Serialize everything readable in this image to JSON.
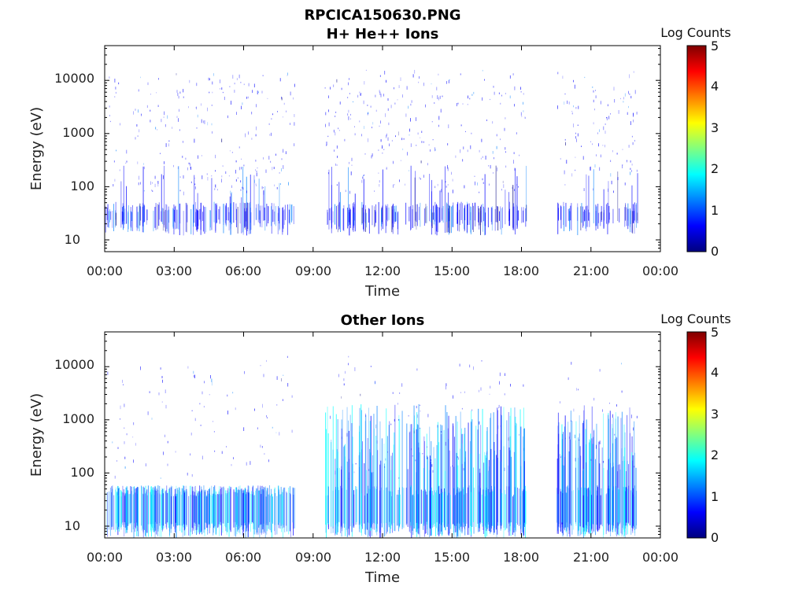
{
  "page_title": "RPCICA150630.PNG",
  "colormap": [
    "#00007f",
    "#0000ff",
    "#0080ff",
    "#00ffff",
    "#80ff80",
    "#ffff00",
    "#ff8000",
    "#ff0000",
    "#7f0000"
  ],
  "chart_data": [
    {
      "type": "heatmap",
      "title": "H+ He++ Ions",
      "xlabel": "Time",
      "ylabel": "Energy (eV)",
      "x_ticks": [
        "00:00",
        "03:00",
        "06:00",
        "09:00",
        "12:00",
        "15:00",
        "18:00",
        "21:00",
        "00:00"
      ],
      "x_range_hours": [
        0,
        24
      ],
      "y_scale": "log",
      "y_range": [
        6,
        45000
      ],
      "y_ticks": [
        "10",
        "100",
        "1000",
        "10000"
      ],
      "colorbar": {
        "label": "Log Counts",
        "range": [
          0,
          5
        ],
        "ticks": [
          "0",
          "1",
          "2",
          "3",
          "4",
          "5"
        ]
      },
      "data_gaps_hours": [
        [
          8.2,
          9.5
        ],
        [
          18.2,
          19.5
        ],
        [
          23.0,
          24.0
        ]
      ],
      "dense_energy_band_eV": [
        20,
        40
      ],
      "max_log_counts_approx": 1.2
    },
    {
      "type": "heatmap",
      "title": "Other Ions",
      "xlabel": "Time",
      "ylabel": "Energy (eV)",
      "x_ticks": [
        "00:00",
        "03:00",
        "06:00",
        "09:00",
        "12:00",
        "15:00",
        "18:00",
        "21:00",
        "00:00"
      ],
      "x_range_hours": [
        0,
        24
      ],
      "y_scale": "log",
      "y_range": [
        6,
        45000
      ],
      "y_ticks": [
        "10",
        "100",
        "1000",
        "10000"
      ],
      "colorbar": {
        "label": "Log Counts",
        "range": [
          0,
          5
        ],
        "ticks": [
          "0",
          "1",
          "2",
          "3",
          "4",
          "5"
        ]
      },
      "data_gaps_hours": [
        [
          8.2,
          9.5
        ],
        [
          18.2,
          19.5
        ],
        [
          23.0,
          24.0
        ]
      ],
      "dense_energy_band_eV": [
        10,
        45
      ],
      "max_log_counts_approx": 2.0
    }
  ]
}
